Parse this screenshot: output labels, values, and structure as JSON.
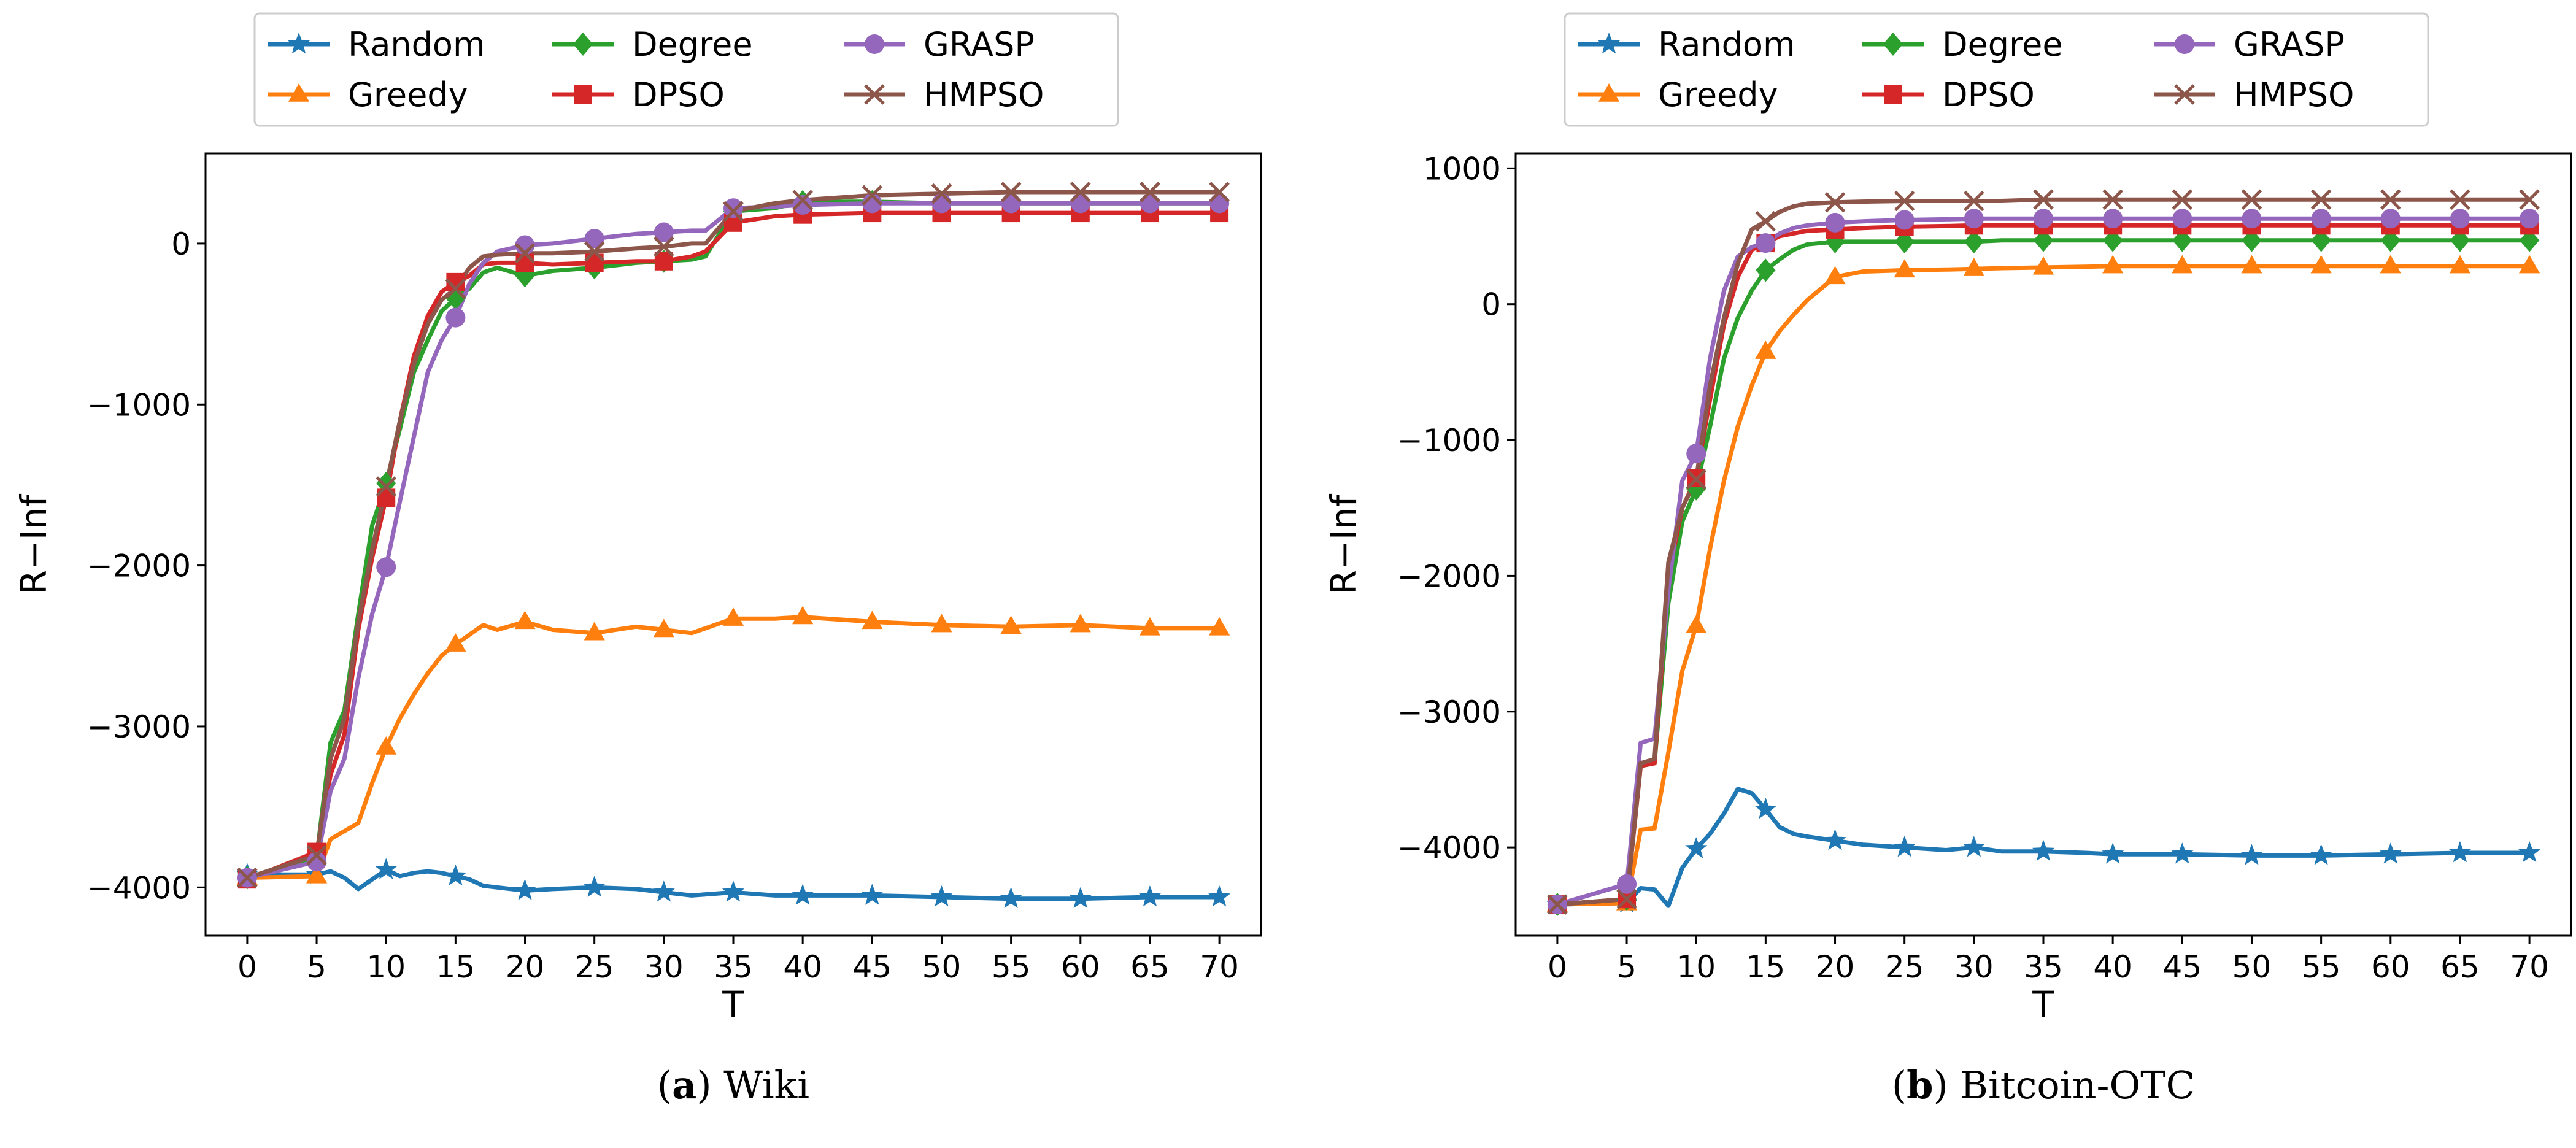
{
  "chart_data": [
    {
      "type": "line",
      "caption_letter": "a",
      "caption_text": "Wiki",
      "xlabel": "T",
      "ylabel": "R−Inf",
      "xlim": [
        -3,
        73
      ],
      "ylim": [
        -4300,
        560
      ],
      "xticks": [
        0,
        5,
        10,
        15,
        20,
        25,
        30,
        35,
        40,
        45,
        50,
        55,
        60,
        65,
        70
      ],
      "yticks": [
        -4000,
        -3000,
        -2000,
        -1000,
        0
      ],
      "ytick_labels": [
        "−4000",
        "−3000",
        "−2000",
        "−1000",
        "0"
      ],
      "legend": [
        "Random",
        "Degree",
        "GRASP",
        "Greedy",
        "DPSO",
        "HMPSO"
      ],
      "series": [
        {
          "name": "Random",
          "color": "#1f77b4",
          "marker": "star",
          "x": [
            0,
            5,
            6,
            7,
            8,
            9,
            10,
            11,
            12,
            13,
            14,
            15,
            16,
            17,
            18,
            20,
            22,
            25,
            28,
            30,
            32,
            35,
            38,
            40,
            45,
            50,
            55,
            60,
            65,
            70
          ],
          "y": [
            -3920,
            -3920,
            -3900,
            -3940,
            -4010,
            -3950,
            -3890,
            -3930,
            -3910,
            -3900,
            -3910,
            -3930,
            -3950,
            -3990,
            -4000,
            -4020,
            -4010,
            -4000,
            -4010,
            -4030,
            -4050,
            -4030,
            -4050,
            -4050,
            -4050,
            -4060,
            -4070,
            -4070,
            -4060,
            -4060
          ]
        },
        {
          "name": "Greedy",
          "color": "#ff7f0e",
          "marker": "triangle",
          "x": [
            0,
            5,
            6,
            7,
            8,
            9,
            10,
            11,
            12,
            13,
            14,
            15,
            17,
            18,
            20,
            22,
            25,
            28,
            30,
            32,
            35,
            38,
            40,
            45,
            50,
            55,
            60,
            65,
            70
          ],
          "y": [
            -3940,
            -3930,
            -3700,
            -3650,
            -3600,
            -3350,
            -3130,
            -2950,
            -2800,
            -2670,
            -2560,
            -2490,
            -2370,
            -2400,
            -2350,
            -2400,
            -2420,
            -2380,
            -2400,
            -2420,
            -2330,
            -2330,
            -2320,
            -2350,
            -2370,
            -2380,
            -2370,
            -2390,
            -2390
          ]
        },
        {
          "name": "Degree",
          "color": "#2ca02c",
          "marker": "diamond",
          "x": [
            0,
            5,
            6,
            7,
            8,
            9,
            10,
            11,
            12,
            13,
            14,
            15,
            16,
            17,
            18,
            20,
            22,
            25,
            28,
            30,
            32,
            33,
            35,
            38,
            40,
            45,
            50,
            55,
            60,
            65,
            70
          ],
          "y": [
            -3940,
            -3810,
            -3100,
            -2900,
            -2300,
            -1750,
            -1490,
            -1150,
            -800,
            -600,
            -420,
            -340,
            -280,
            -180,
            -150,
            -200,
            -170,
            -150,
            -120,
            -110,
            -100,
            -80,
            200,
            220,
            260,
            260,
            250,
            250,
            250,
            250,
            250
          ]
        },
        {
          "name": "DPSO",
          "color": "#d62728",
          "marker": "square",
          "x": [
            0,
            5,
            6,
            7,
            8,
            9,
            10,
            11,
            12,
            13,
            14,
            15,
            16,
            17,
            18,
            20,
            22,
            25,
            28,
            30,
            32,
            33,
            35,
            38,
            40,
            45,
            50,
            55,
            60,
            65,
            70
          ],
          "y": [
            -3950,
            -3780,
            -3300,
            -3050,
            -2400,
            -1950,
            -1580,
            -1100,
            -700,
            -450,
            -300,
            -240,
            -200,
            -130,
            -120,
            -120,
            -130,
            -120,
            -110,
            -110,
            -80,
            -50,
            130,
            170,
            180,
            190,
            190,
            190,
            190,
            190,
            190
          ]
        },
        {
          "name": "GRASP",
          "color": "#9467bd",
          "marker": "circle",
          "x": [
            0,
            5,
            6,
            7,
            8,
            9,
            10,
            11,
            12,
            13,
            14,
            15,
            16,
            17,
            18,
            20,
            22,
            25,
            28,
            30,
            32,
            33,
            35,
            38,
            40,
            45,
            50,
            55,
            60,
            65,
            70
          ],
          "y": [
            -3940,
            -3840,
            -3400,
            -3200,
            -2700,
            -2300,
            -2010,
            -1600,
            -1200,
            -800,
            -600,
            -460,
            -250,
            -120,
            -50,
            -10,
            0,
            30,
            60,
            70,
            80,
            80,
            220,
            230,
            240,
            250,
            250,
            250,
            250,
            250,
            250
          ]
        },
        {
          "name": "HMPSO",
          "color": "#8c564b",
          "marker": "x",
          "x": [
            0,
            5,
            6,
            7,
            8,
            9,
            10,
            11,
            12,
            13,
            14,
            15,
            16,
            17,
            18,
            20,
            22,
            25,
            28,
            30,
            32,
            33,
            35,
            38,
            40,
            45,
            50,
            55,
            60,
            65,
            70
          ],
          "y": [
            -3940,
            -3800,
            -3200,
            -2950,
            -2350,
            -1900,
            -1510,
            -1100,
            -750,
            -500,
            -350,
            -280,
            -150,
            -80,
            -70,
            -60,
            -60,
            -50,
            -30,
            -20,
            0,
            0,
            200,
            250,
            270,
            300,
            310,
            320,
            320,
            320,
            320
          ]
        }
      ]
    },
    {
      "type": "line",
      "caption_letter": "b",
      "caption_text": "Bitcoin-OTC",
      "xlabel": "T",
      "ylabel": "R−Inf",
      "xlim": [
        -3,
        73
      ],
      "ylim": [
        -4650,
        1110
      ],
      "xticks": [
        0,
        5,
        10,
        15,
        20,
        25,
        30,
        35,
        40,
        45,
        50,
        55,
        60,
        65,
        70
      ],
      "yticks": [
        -4000,
        -3000,
        -2000,
        -1000,
        0,
        1000
      ],
      "ytick_labels": [
        "−4000",
        "−3000",
        "−2000",
        "−1000",
        "0",
        "1000"
      ],
      "legend": [
        "Random",
        "Degree",
        "GRASP",
        "Greedy",
        "DPSO",
        "HMPSO"
      ],
      "series": [
        {
          "name": "Random",
          "color": "#1f77b4",
          "marker": "star",
          "x": [
            0,
            5,
            6,
            7,
            8,
            9,
            10,
            11,
            12,
            13,
            14,
            15,
            16,
            17,
            18,
            20,
            22,
            25,
            28,
            30,
            32,
            35,
            38,
            40,
            45,
            50,
            55,
            60,
            65,
            70
          ],
          "y": [
            -4420,
            -4410,
            -4300,
            -4310,
            -4430,
            -4150,
            -4010,
            -3900,
            -3750,
            -3570,
            -3600,
            -3720,
            -3850,
            -3900,
            -3920,
            -3950,
            -3980,
            -4000,
            -4020,
            -4000,
            -4030,
            -4030,
            -4040,
            -4050,
            -4050,
            -4060,
            -4060,
            -4050,
            -4040,
            -4040
          ]
        },
        {
          "name": "Greedy",
          "color": "#ff7f0e",
          "marker": "triangle",
          "x": [
            0,
            5,
            6,
            7,
            8,
            9,
            10,
            11,
            12,
            13,
            14,
            15,
            16,
            17,
            18,
            20,
            22,
            25,
            28,
            30,
            32,
            35,
            38,
            40,
            45,
            50,
            55,
            60,
            65,
            70
          ],
          "y": [
            -4420,
            -4410,
            -3870,
            -3860,
            -3300,
            -2700,
            -2370,
            -1800,
            -1300,
            -900,
            -600,
            -350,
            -200,
            -80,
            30,
            200,
            240,
            250,
            255,
            260,
            265,
            270,
            275,
            280,
            280,
            280,
            280,
            280,
            280,
            280
          ]
        },
        {
          "name": "Degree",
          "color": "#2ca02c",
          "marker": "diamond",
          "x": [
            0,
            5,
            6,
            7,
            8,
            9,
            10,
            11,
            12,
            13,
            14,
            15,
            16,
            17,
            18,
            20,
            22,
            25,
            28,
            30,
            32,
            35,
            38,
            40,
            45,
            50,
            55,
            60,
            65,
            70
          ],
          "y": [
            -4420,
            -4380,
            -3400,
            -3380,
            -2200,
            -1600,
            -1360,
            -900,
            -400,
            -100,
            100,
            250,
            330,
            400,
            440,
            460,
            460,
            460,
            460,
            460,
            470,
            470,
            470,
            470,
            470,
            470,
            470,
            470,
            470,
            470
          ]
        },
        {
          "name": "DPSO",
          "color": "#d62728",
          "marker": "square",
          "x": [
            0,
            5,
            6,
            7,
            8,
            9,
            10,
            11,
            12,
            13,
            14,
            15,
            16,
            17,
            18,
            20,
            22,
            25,
            28,
            30,
            32,
            35,
            38,
            40,
            45,
            50,
            55,
            60,
            65,
            70
          ],
          "y": [
            -4420,
            -4380,
            -3400,
            -3380,
            -2000,
            -1500,
            -1280,
            -700,
            -150,
            200,
            400,
            450,
            500,
            520,
            540,
            550,
            560,
            570,
            575,
            580,
            580,
            580,
            580,
            580,
            580,
            580,
            580,
            580,
            580,
            580
          ]
        },
        {
          "name": "GRASP",
          "color": "#9467bd",
          "marker": "circle",
          "x": [
            0,
            5,
            6,
            7,
            8,
            9,
            10,
            11,
            12,
            13,
            14,
            15,
            16,
            17,
            18,
            20,
            22,
            25,
            28,
            30,
            32,
            35,
            38,
            40,
            45,
            50,
            55,
            60,
            65,
            70
          ],
          "y": [
            -4420,
            -4270,
            -3230,
            -3200,
            -2100,
            -1300,
            -1100,
            -400,
            100,
            350,
            420,
            450,
            520,
            560,
            580,
            600,
            610,
            620,
            625,
            630,
            630,
            630,
            630,
            630,
            630,
            630,
            630,
            630,
            630,
            630
          ]
        },
        {
          "name": "HMPSO",
          "color": "#8c564b",
          "marker": "x",
          "x": [
            0,
            5,
            6,
            7,
            8,
            9,
            10,
            11,
            12,
            13,
            14,
            15,
            16,
            17,
            18,
            20,
            22,
            25,
            28,
            30,
            32,
            35,
            38,
            40,
            45,
            50,
            55,
            60,
            65,
            70
          ],
          "y": [
            -4420,
            -4380,
            -3380,
            -3350,
            -1900,
            -1500,
            -1290,
            -600,
            -100,
            300,
            550,
            610,
            680,
            720,
            740,
            750,
            755,
            760,
            760,
            760,
            760,
            770,
            770,
            770,
            770,
            770,
            770,
            770,
            770,
            770
          ]
        }
      ]
    }
  ]
}
